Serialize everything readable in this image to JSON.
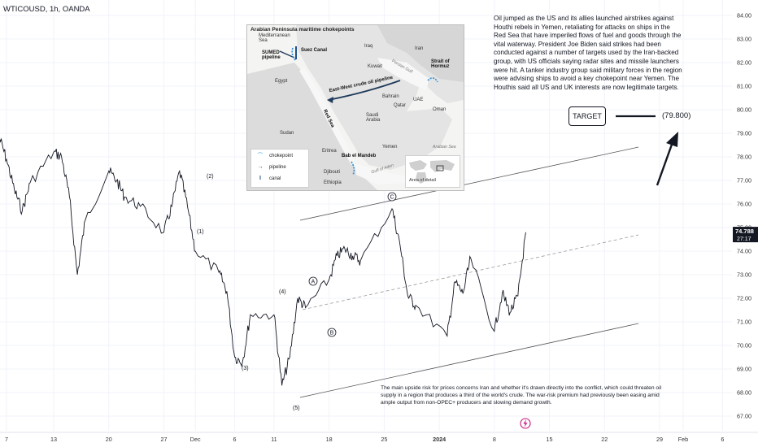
{
  "header": {
    "symbol": "WTICOUSD, 1h, OANDA"
  },
  "price_axis": {
    "ticks": [
      "84.00",
      "83.00",
      "82.00",
      "81.00",
      "80.00",
      "79.00",
      "78.00",
      "77.00",
      "76.00",
      "75.00",
      "74.00",
      "73.00",
      "72.00",
      "71.00",
      "70.00",
      "69.00",
      "68.00",
      "67.00"
    ],
    "current_price": "74.788",
    "countdown": "27:17",
    "current_price_color": "#131722"
  },
  "time_axis": {
    "ticks": [
      "7",
      "13",
      "20",
      "27",
      "Dec",
      "6",
      "11",
      "18",
      "25",
      "2024",
      "8",
      "15",
      "22",
      "29",
      "Feb",
      "6"
    ]
  },
  "waves": {
    "w1": "(1)",
    "w2": "(2)",
    "w3": "(3)",
    "w4": "(4)",
    "w5": "(5)",
    "wA": "A",
    "wB": "B",
    "wC": "C"
  },
  "target": {
    "label": "TARGET",
    "value": "(79.800)"
  },
  "news_text": "Oil jumped as the US and its allies launched airstrikes against Houthi rebels in Yemen, retaliating for attacks on ships in the Red Sea that have imperiled flows of fuel and goods through the vital waterway. President Joe Biden said strikes had been conducted against a number of targets used by the Iran-backed group, with US officials saying radar sites and missile launchers were hit. A tanker industry group said military forces in the region were advising ships to avoid a key chokepoint near Yemen. The Houthis said all US and UK interests are now legitimate targets.",
  "bottom_note": "The main upside risk for prices concerns Iran and whether it's drawn directly into the conflict, which could threaten oil supply in a region that produces a third of the world's crude. The war-risk premium had previously been easing amid ample output from non-OPEC+ producers and slowing demand growth.",
  "map": {
    "title": "Arabian Peninsula maritime chokepoints",
    "labels": {
      "mediterranean": "Mediterranean Sea",
      "sumed": "SUMED pipeline",
      "suez": "Suez Canal",
      "iraq": "Iraq",
      "iran": "Iran",
      "kuwait": "Kuwait",
      "persian_gulf": "Persian Gulf",
      "hormuz": "Strait of Hormuz",
      "egypt": "Egypt",
      "east_west": "East-West crude oil pipeline",
      "bahrain": "Bahrain",
      "qatar": "Qatar",
      "uae": "UAE",
      "oman": "Oman",
      "red_sea": "Red Sea",
      "saudi": "Saudi Arabia",
      "sudan": "Sudan",
      "yemen": "Yemen",
      "eritrea": "Eritrea",
      "mandeb": "Bab el Mandeb",
      "arabian_sea": "Arabian Sea",
      "djibouti": "Djibouti",
      "gulf_aden": "Gulf of Aden",
      "ethiopia": "Ethiopia",
      "area_of_detail": "Area of detail"
    },
    "legend": {
      "chokepoint": "chokepoint",
      "pipeline": "pipeline",
      "canal": "canal"
    },
    "colors": {
      "chokepoint": "#2a8fd6",
      "pipeline": "#1f3a5a",
      "canal": "#1f4f8a",
      "land": "#dedede",
      "sea": "#f7f7f7"
    }
  },
  "chart_data": {
    "type": "candlestick-line",
    "symbol": "WTICOUSD",
    "timeframe": "1h",
    "ylim": [
      67,
      84
    ],
    "x_ticks": [
      "7",
      "13",
      "20",
      "27",
      "Dec",
      "6",
      "11",
      "18",
      "25",
      "2024",
      "8",
      "15",
      "22",
      "29",
      "Feb",
      "6"
    ],
    "price_path": [
      {
        "date": "2023-11-06",
        "price": 78.9
      },
      {
        "date": "2023-11-07",
        "price": 77.9
      },
      {
        "date": "2023-11-08",
        "price": 76.6
      },
      {
        "date": "2023-11-09",
        "price": 75.7
      },
      {
        "date": "2023-11-10",
        "price": 76.9
      },
      {
        "date": "2023-11-13",
        "price": 78.2
      },
      {
        "date": "2023-11-14",
        "price": 78.0
      },
      {
        "date": "2023-11-15",
        "price": 76.3
      },
      {
        "date": "2023-11-16",
        "price": 73.0
      },
      {
        "date": "2023-11-17",
        "price": 75.3
      },
      {
        "date": "2023-11-20",
        "price": 77.4
      },
      {
        "date": "2023-11-21",
        "price": 77.0
      },
      {
        "date": "2023-11-22",
        "price": 76.3
      },
      {
        "date": "2023-11-24",
        "price": 75.9
      },
      {
        "date": "2023-11-27",
        "price": 74.8
      },
      {
        "date": "2023-11-28",
        "price": 75.9
      },
      {
        "date": "2023-11-29",
        "price": 77.4
      },
      {
        "date": "2023-11-30",
        "price": 75.9
      },
      {
        "date": "2023-12-01",
        "price": 74.0
      },
      {
        "date": "2023-12-04",
        "price": 73.1
      },
      {
        "date": "2023-12-05",
        "price": 72.3
      },
      {
        "date": "2023-12-06",
        "price": 69.5
      },
      {
        "date": "2023-12-07",
        "price": 69.3
      },
      {
        "date": "2023-12-08",
        "price": 71.3
      },
      {
        "date": "2023-12-11",
        "price": 71.3
      },
      {
        "date": "2023-12-12",
        "price": 68.3
      },
      {
        "date": "2023-12-13",
        "price": 69.5
      },
      {
        "date": "2023-12-14",
        "price": 72.0
      },
      {
        "date": "2023-12-15",
        "price": 71.6
      },
      {
        "date": "2023-12-18",
        "price": 72.8
      },
      {
        "date": "2023-12-19",
        "price": 73.8
      },
      {
        "date": "2023-12-20",
        "price": 74.1
      },
      {
        "date": "2023-12-21",
        "price": 73.8
      },
      {
        "date": "2023-12-22",
        "price": 73.6
      },
      {
        "date": "2023-12-26",
        "price": 75.8
      },
      {
        "date": "2023-12-27",
        "price": 74.3
      },
      {
        "date": "2023-12-28",
        "price": 72.1
      },
      {
        "date": "2023-12-29",
        "price": 71.7
      },
      {
        "date": "2024-01-02",
        "price": 70.4
      },
      {
        "date": "2024-01-03",
        "price": 72.7
      },
      {
        "date": "2024-01-04",
        "price": 72.2
      },
      {
        "date": "2024-01-05",
        "price": 73.7
      },
      {
        "date": "2024-01-08",
        "price": 70.6
      },
      {
        "date": "2024-01-09",
        "price": 72.2
      },
      {
        "date": "2024-01-10",
        "price": 71.4
      },
      {
        "date": "2024-01-11",
        "price": 72.1
      },
      {
        "date": "2024-01-12",
        "price": 74.8
      }
    ],
    "last_price": 74.788,
    "wave_labels": [
      "(1)",
      "(2)",
      "(3)",
      "(4)",
      "(5)",
      "A",
      "B",
      "C"
    ],
    "channel": {
      "upper": [
        {
          "date": "2023-12-12",
          "price": 75.1
        },
        {
          "date": "2024-02-01",
          "price": 78.5
        }
      ],
      "lower": [
        {
          "date": "2023-12-12",
          "price": 67.9
        },
        {
          "date": "2024-02-01",
          "price": 71.0
        }
      ],
      "mid": [
        {
          "date": "2023-12-18",
          "price": 71.8
        },
        {
          "date": "2024-02-01",
          "price": 74.8
        }
      ]
    },
    "target": 79.8
  }
}
